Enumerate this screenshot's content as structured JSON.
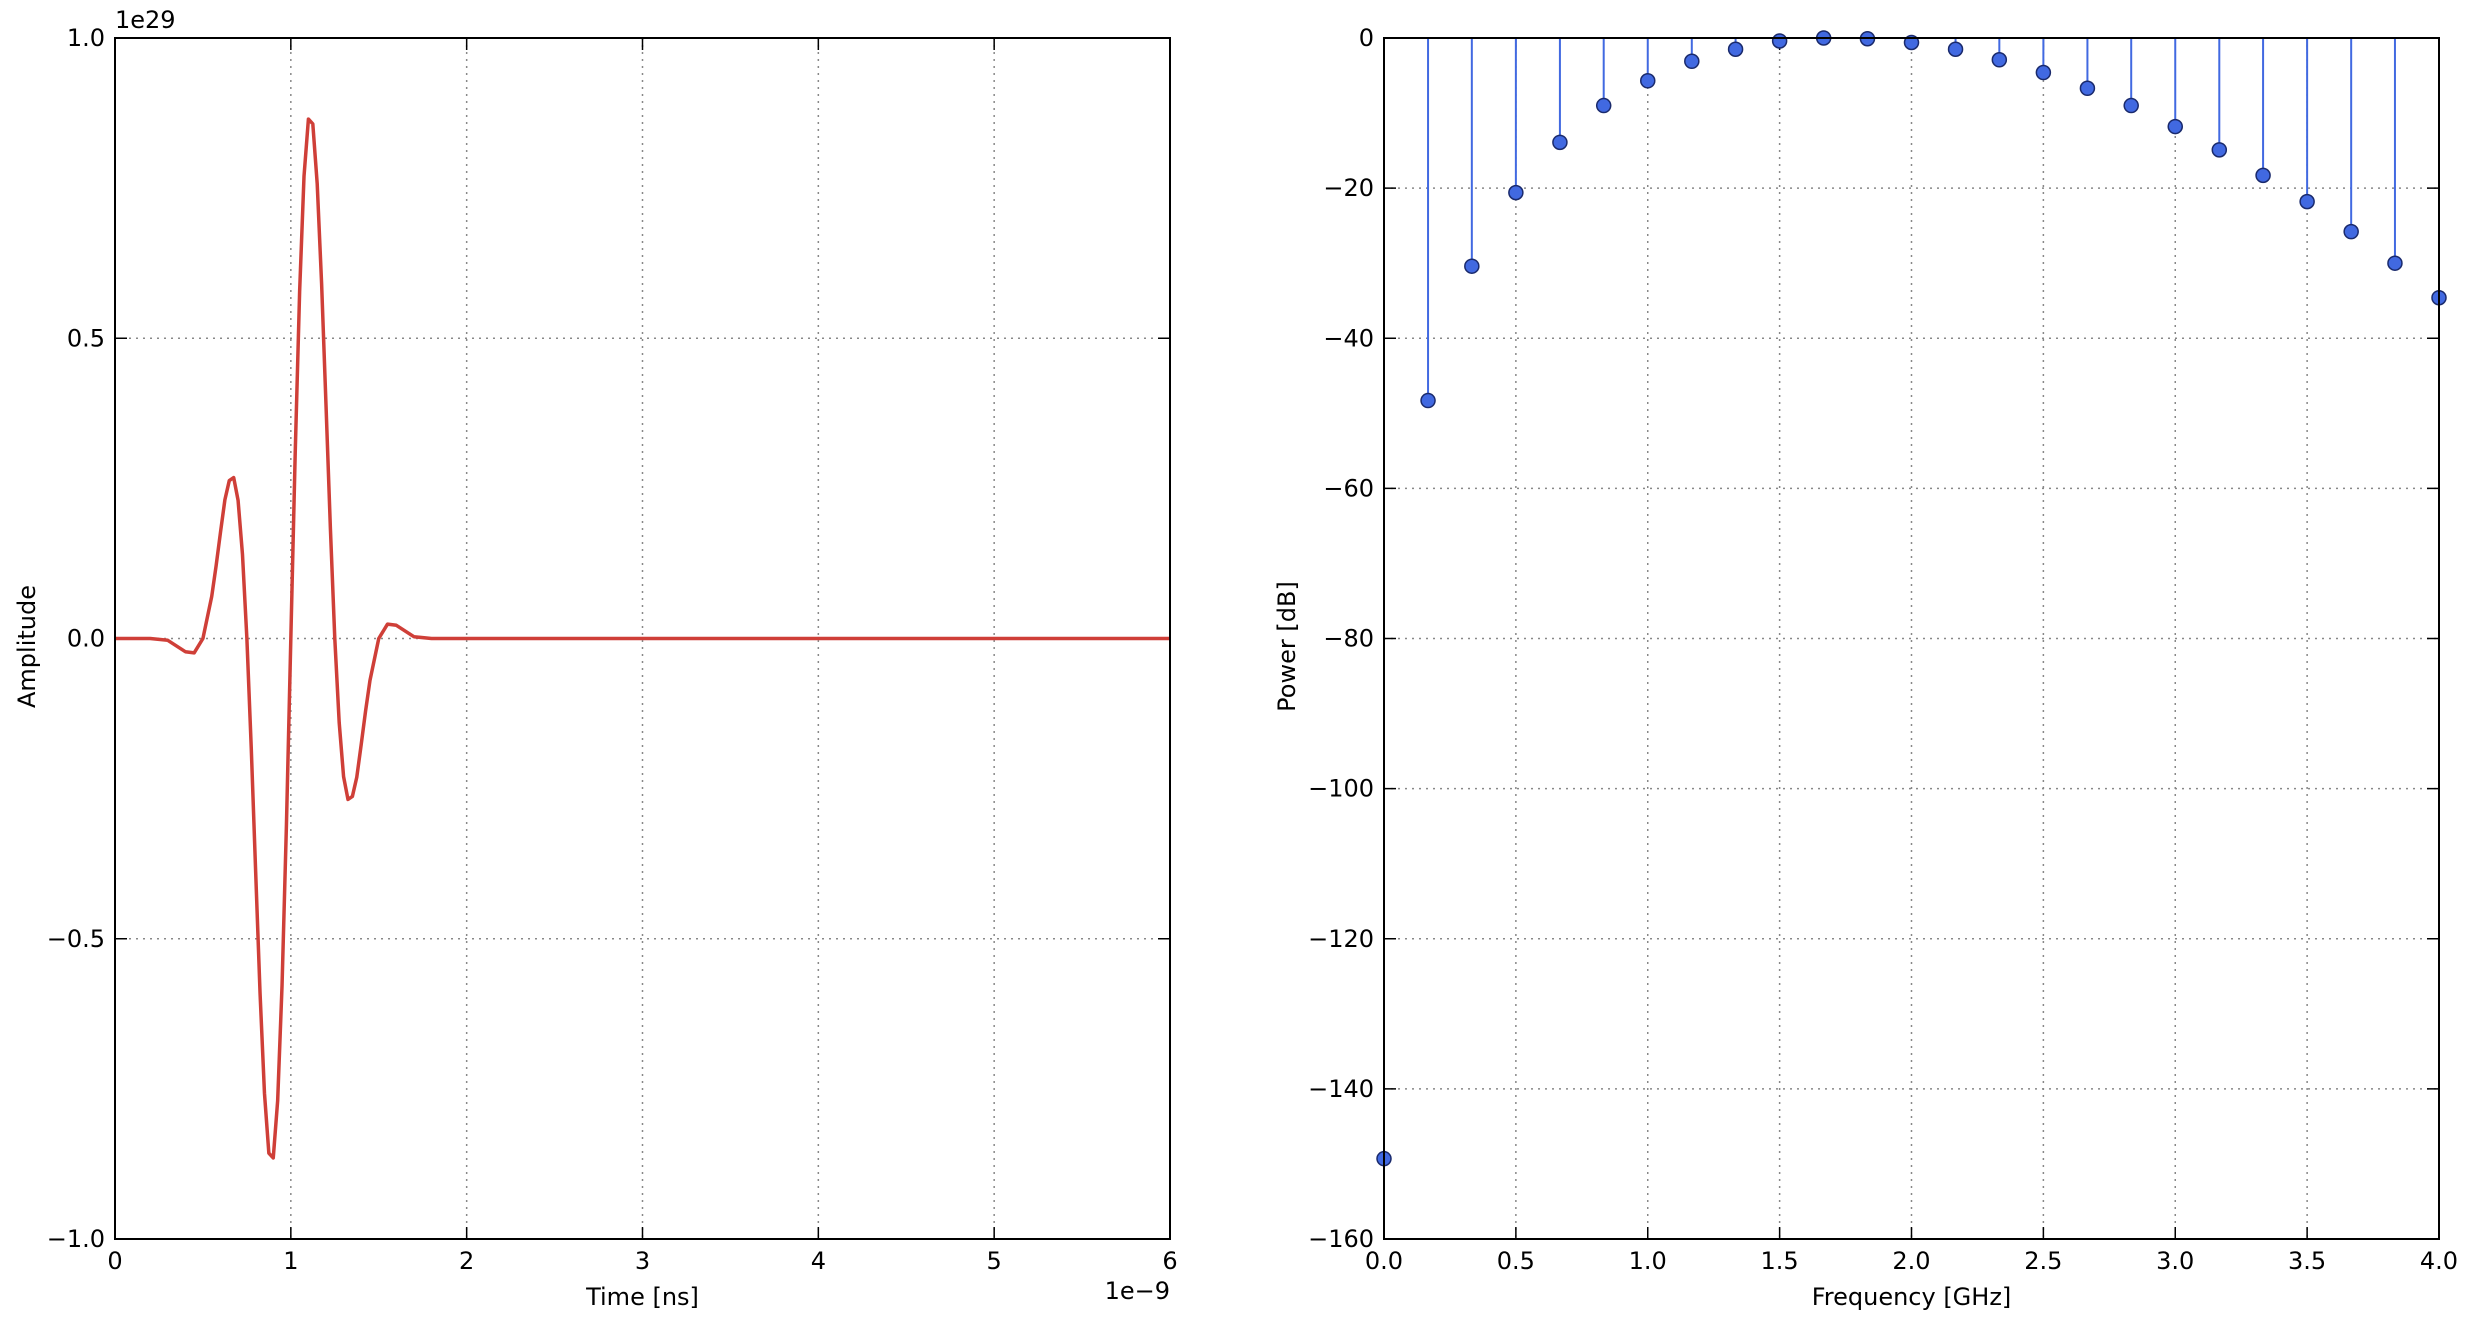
{
  "chart_data": [
    {
      "type": "line",
      "x_label": "Time [ns]",
      "y_label": "Amplitude",
      "x_offset_label": "1e−9",
      "y_offset_label": "1e29",
      "color": "#cf3f38",
      "x": [
        0,
        0.2,
        0.3,
        0.4,
        0.45,
        0.5,
        0.55,
        0.575,
        0.6,
        0.625,
        0.65,
        0.675,
        0.7,
        0.725,
        0.75,
        0.775,
        0.8,
        0.825,
        0.85,
        0.875,
        0.9,
        0.925,
        0.95,
        0.975,
        1.0,
        1.025,
        1.05,
        1.075,
        1.1,
        1.125,
        1.15,
        1.175,
        1.2,
        1.225,
        1.25,
        1.275,
        1.3,
        1.325,
        1.35,
        1.375,
        1.4,
        1.425,
        1.45,
        1.5,
        1.55,
        1.6,
        1.7,
        1.8,
        2,
        6
      ],
      "values": [
        0,
        0,
        -0.003,
        -0.022,
        -0.024,
        0,
        0.07,
        0.121,
        0.177,
        0.231,
        0.263,
        0.268,
        0.23,
        0.14,
        0,
        -0.183,
        -0.389,
        -0.591,
        -0.757,
        -0.857,
        -0.865,
        -0.77,
        -0.578,
        -0.31,
        0,
        0.31,
        0.578,
        0.77,
        0.865,
        0.857,
        0.757,
        0.591,
        0.389,
        0.183,
        0,
        -0.14,
        -0.23,
        -0.268,
        -0.263,
        -0.231,
        -0.177,
        -0.121,
        -0.07,
        0,
        0.024,
        0.022,
        0.003,
        0,
        0,
        0
      ],
      "xlim": [
        0,
        6
      ],
      "xticks": [
        0,
        1,
        2,
        3,
        4,
        5,
        6
      ],
      "ylim": [
        -1.0,
        1.0
      ],
      "yticks": [
        {
          "value": -1.0,
          "label": "−1.0"
        },
        {
          "value": -0.5,
          "label": "−0.5"
        },
        {
          "value": 0.0,
          "label": "0.0"
        },
        {
          "value": 0.5,
          "label": "0.5"
        },
        {
          "value": 1.0,
          "label": "1.0"
        }
      ],
      "grid": true
    },
    {
      "type": "stem",
      "x_label": "Frequency [GHz]",
      "y_label": "Power [dB]",
      "color": "#4169e1",
      "x": [
        0,
        0.167,
        0.333,
        0.5,
        0.667,
        0.833,
        1.0,
        1.167,
        1.333,
        1.5,
        1.667,
        1.833,
        2.0,
        2.167,
        2.333,
        2.5,
        2.667,
        2.833,
        3.0,
        3.167,
        3.333,
        3.5,
        3.667,
        3.833,
        4.0
      ],
      "values": [
        -149.3,
        -48.3,
        -30.4,
        -20.6,
        -13.9,
        -9.0,
        -5.7,
        -3.1,
        -1.5,
        -0.4,
        0,
        -0.1,
        -0.6,
        -1.5,
        -2.9,
        -4.6,
        -6.7,
        -9.0,
        -11.8,
        -14.9,
        -18.3,
        -21.8,
        -25.8,
        -30.0,
        -34.6
      ],
      "xlim": [
        0,
        4.0
      ],
      "xticks": [
        {
          "value": 0,
          "label": "0.0"
        },
        {
          "value": 0.5,
          "label": "0.5"
        },
        {
          "value": 1,
          "label": "1.0"
        },
        {
          "value": 1.5,
          "label": "1.5"
        },
        {
          "value": 2,
          "label": "2.0"
        },
        {
          "value": 2.5,
          "label": "2.5"
        },
        {
          "value": 3,
          "label": "3.0"
        },
        {
          "value": 3.5,
          "label": "3.5"
        },
        {
          "value": 4,
          "label": "4.0"
        }
      ],
      "ylim": [
        -160,
        0
      ],
      "yticks": [
        {
          "value": -160,
          "label": "−160"
        },
        {
          "value": -140,
          "label": "−140"
        },
        {
          "value": -120,
          "label": "−120"
        },
        {
          "value": -100,
          "label": "−100"
        },
        {
          "value": -80,
          "label": "−80"
        },
        {
          "value": -60,
          "label": "−60"
        },
        {
          "value": -40,
          "label": "−40"
        },
        {
          "value": -20,
          "label": "−20"
        },
        0
      ],
      "grid": true
    }
  ]
}
